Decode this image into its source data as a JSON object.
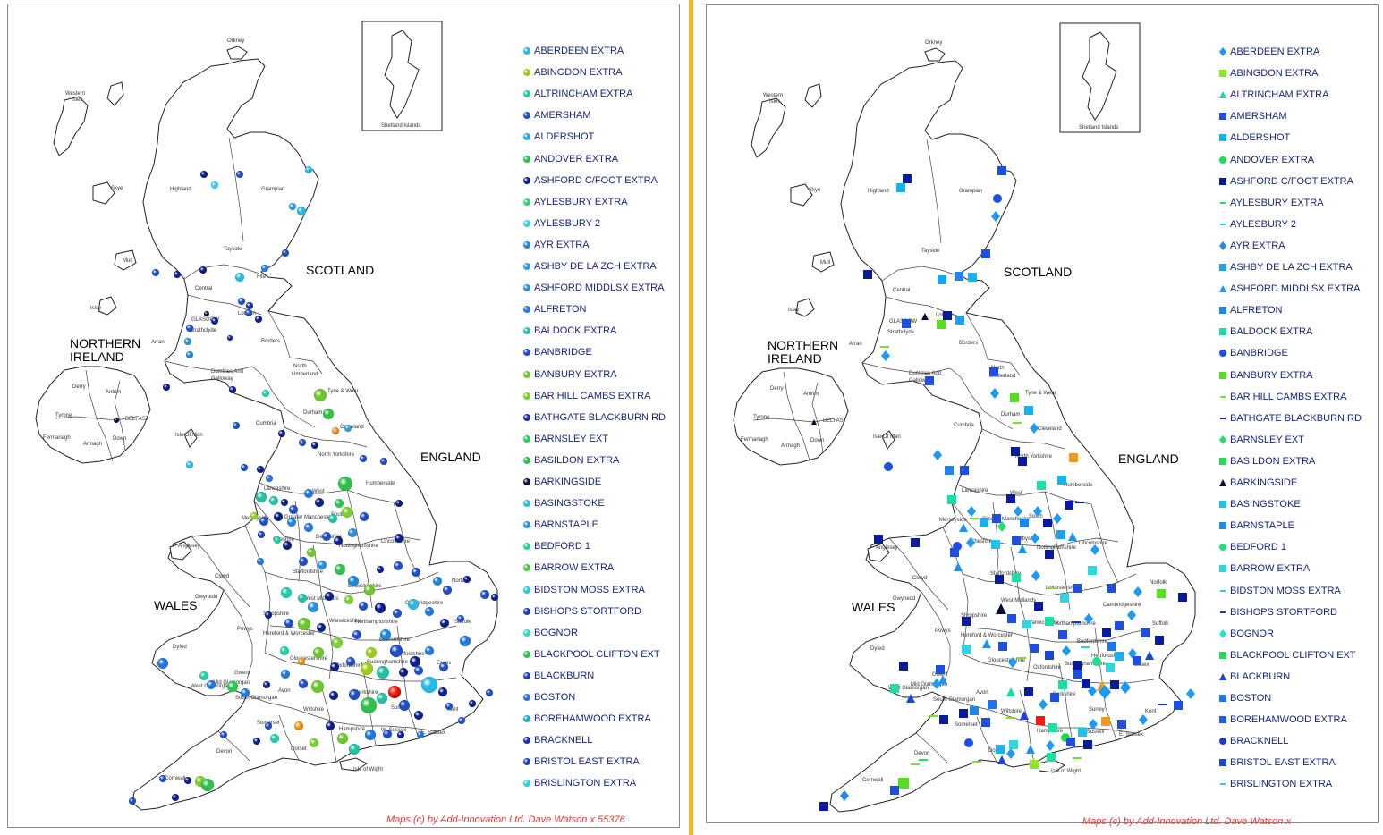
{
  "countries": {
    "scotland": "SCOTLAND",
    "england": "ENGLAND",
    "wales": "WALES",
    "northern_ireland_1": "NORTHERN",
    "northern_ireland_2": "IRELAND"
  },
  "regions": {
    "orkney": "Orkney",
    "western_isles_1": "Western",
    "western_isles_2": "Isles",
    "shetland": "Shetland Islands",
    "highland": "Highland",
    "grampian": "Grampian",
    "skye": "Skye",
    "tayside": "Tayside",
    "mull": "Mull",
    "central": "Central",
    "fife": "Fife",
    "islay": "Islay",
    "glasgow": "GLASGOW",
    "lothian": "Lothian",
    "strathclyde": "Strathclyde",
    "arran": "Arran",
    "borders": "Borders",
    "dumfries_1": "Dumfries And",
    "dumfries_2": "Galloway",
    "north_umberland_1": "North",
    "north_umberland_2": "Umberland",
    "tyne_wear": "Tyne & Wear",
    "durham": "Durham",
    "cleveland": "Cleveland",
    "cumbria": "Cumbria",
    "isle_of_man": "Isle Of Man",
    "north_yorkshire": "North Yorkshire",
    "humberside": "Humberside",
    "lancashire": "Lancashire",
    "west": "West",
    "south": "South",
    "greater_manchester": "Greater Manchester",
    "merseyside": "Merseyside",
    "cheshire": "Cheshire",
    "derbyshire": "Derbyshire",
    "nottinghamshire": "Nottinghamshire",
    "lincolnshire": "Lincolnshire",
    "anglesey": "Anglesey",
    "clwyd": "Clwyd",
    "gwynedd": "Gwynedd",
    "staffordshire": "Staffordshire",
    "shropshire": "Shropshire",
    "west_midlands": "West Midlands",
    "leicestershire": "Leicestershire",
    "norfolk": "Norfolk",
    "cambridgeshire": "Cambridgeshire",
    "northamptonshire": "Northamptonshire",
    "suffolk": "Suffolk",
    "warwickshire": "Warwickshire",
    "powys": "Powys",
    "hereford": "Hereford & Worcester",
    "bedfordshire": "Bedfordshire",
    "hertfordshire": "Hertfordshire",
    "essex": "Essex",
    "dyfed": "Dyfed",
    "gloucestershire": "Gloucestershire",
    "oxfordshire": "Oxfordshire",
    "buckinghamshire": "Buckinghamshire",
    "gwent": "Gwent",
    "west_glamorgan": "West Glamorgan",
    "mid_glamorgan": "Mid Glamorgan",
    "south_glamorgan": "South Glamorgan",
    "avon": "Avon",
    "wiltshire": "Wiltshire",
    "berkshire": "Berkshire",
    "surrey": "Surrey",
    "kent": "Kent",
    "hampshire": "Hampshire",
    "w_sussex": "W. Sussex",
    "e_sussex": "E. Sussex",
    "somerset": "Somerset",
    "devon": "Devon",
    "dorset": "Dorset",
    "cornwall": "Cornwall",
    "isle_of_wight": "Isle of Wight",
    "belfast": "BELFAST",
    "derry": "Derry",
    "antrim": "Antrim",
    "tyrone": "Tyrone",
    "fermanagh": "Fermanagh",
    "armagh": "Armagh",
    "down": "Down"
  },
  "legend_left": [
    {
      "label": "ABERDEEN EXTRA",
      "color": "#26b8e6",
      "shape": "ball"
    },
    {
      "label": "ABINGDON EXTRA",
      "color": "#9ccc1a",
      "shape": "ball"
    },
    {
      "label": "ALTRINCHAM EXTRA",
      "color": "#1fcfa5",
      "shape": "ball"
    },
    {
      "label": "AMERSHAM",
      "color": "#1e4fc8",
      "shape": "ball"
    },
    {
      "label": "ALDERSHOT",
      "color": "#27a9e8",
      "shape": "ball"
    },
    {
      "label": "ANDOVER EXTRA",
      "color": "#2fbf4a",
      "shape": "ball"
    },
    {
      "label": "ASHFORD C/FOOT EXTRA",
      "color": "#0d1f8c",
      "shape": "ball"
    },
    {
      "label": "AYLESBURY EXTRA",
      "color": "#2ad66f",
      "shape": "ball"
    },
    {
      "label": "AYLESBURY 2",
      "color": "#34d2e0",
      "shape": "ball"
    },
    {
      "label": "AYR EXTRA",
      "color": "#1f86d6",
      "shape": "ball"
    },
    {
      "label": "ASHBY DE LA ZCH EXTRA",
      "color": "#2f9be0",
      "shape": "ball"
    },
    {
      "label": "ASHFORD MIDDLSX EXTRA",
      "color": "#2b8ed9",
      "shape": "ball"
    },
    {
      "label": "ALFRETON",
      "color": "#2277dc",
      "shape": "ball"
    },
    {
      "label": "BALDOCK EXTRA",
      "color": "#22c2a0",
      "shape": "ball"
    },
    {
      "label": "BANBRIDGE",
      "color": "#1d48c9",
      "shape": "ball"
    },
    {
      "label": "BANBURY EXTRA",
      "color": "#6cc72a",
      "shape": "ball"
    },
    {
      "label": "BAR HILL CAMBS EXTRA",
      "color": "#7ad12c",
      "shape": "ball"
    },
    {
      "label": "BATHGATE BLACKBURN RD",
      "color": "#1a2fa8",
      "shape": "ball"
    },
    {
      "label": "BARNSLEY EXT",
      "color": "#2ac95a",
      "shape": "ball"
    },
    {
      "label": "BASILDON EXTRA",
      "color": "#29c04a",
      "shape": "ball"
    },
    {
      "label": "BARKINGSIDE",
      "color": "#0a0f3a",
      "shape": "ball"
    },
    {
      "label": "BASINGSTOKE",
      "color": "#27bfe0",
      "shape": "ball"
    },
    {
      "label": "BARNSTAPLE",
      "color": "#2496d8",
      "shape": "ball"
    },
    {
      "label": "BEDFORD 1",
      "color": "#2cd08a",
      "shape": "ball"
    },
    {
      "label": "BARROW EXTRA",
      "color": "#48c63a",
      "shape": "ball"
    },
    {
      "label": "BIDSTON MOSS EXTRA",
      "color": "#26c9d9",
      "shape": "ball"
    },
    {
      "label": "BISHOPS STORTFORD",
      "color": "#1b3cb8",
      "shape": "ball"
    },
    {
      "label": "BOGNOR",
      "color": "#2cdac5",
      "shape": "ball"
    },
    {
      "label": "BLACKPOOL CLIFTON EXT",
      "color": "#33c44d",
      "shape": "ball"
    },
    {
      "label": "BLACKBURN",
      "color": "#1d40c2",
      "shape": "ball"
    },
    {
      "label": "BOSTON",
      "color": "#2a6edb",
      "shape": "ball"
    },
    {
      "label": "BOREHAMWOOD EXTRA",
      "color": "#21a7c9",
      "shape": "ball"
    },
    {
      "label": "BRACKNELL",
      "color": "#1a32a7",
      "shape": "ball"
    },
    {
      "label": "BRISTOL EAST EXTRA",
      "color": "#1a3fb3",
      "shape": "ball"
    },
    {
      "label": "BRISLINGTON EXTRA",
      "color": "#2ed0d8",
      "shape": "ball"
    }
  ],
  "legend_right": [
    {
      "label": "ABERDEEN EXTRA",
      "color": "#1e9bf0",
      "shape": "diamond"
    },
    {
      "label": "ABINGDON EXTRA",
      "color": "#8be829",
      "shape": "square"
    },
    {
      "label": "ALTRINCHAM EXTRA",
      "color": "#18d9a0",
      "shape": "triangle"
    },
    {
      "label": "AMERSHAM",
      "color": "#1e4fe0",
      "shape": "square"
    },
    {
      "label": "ALDERSHOT",
      "color": "#19b2ef",
      "shape": "square"
    },
    {
      "label": "ANDOVER EXTRA",
      "color": "#18e04e",
      "shape": "circle"
    },
    {
      "label": "ASHFORD C/FOOT EXTRA",
      "color": "#0a1a9c",
      "shape": "square"
    },
    {
      "label": "AYLESBURY EXTRA",
      "color": "#25df5a",
      "shape": "dash"
    },
    {
      "label": "AYLESBURY 2",
      "color": "#22cfe3",
      "shape": "dash"
    },
    {
      "label": "AYR EXTRA",
      "color": "#1f8ce8",
      "shape": "diamond"
    },
    {
      "label": "ASHBY DE LA ZCH EXTRA",
      "color": "#1fa1ef",
      "shape": "square"
    },
    {
      "label": "ASHFORD MIDDLSX EXTRA",
      "color": "#1d95f0",
      "shape": "triangle"
    },
    {
      "label": "ALFRETON",
      "color": "#1f86ee",
      "shape": "square"
    },
    {
      "label": "BALDOCK EXTRA",
      "color": "#1ae0a6",
      "shape": "square"
    },
    {
      "label": "BANBRIDGE",
      "color": "#1b4fe3",
      "shape": "circle"
    },
    {
      "label": "BANBURY EXTRA",
      "color": "#55e01e",
      "shape": "square"
    },
    {
      "label": "BAR HILL CAMBS EXTRA",
      "color": "#7ee02c",
      "shape": "dash"
    },
    {
      "label": "BATHGATE BLACKBURN RD",
      "color": "#1422a8",
      "shape": "dash"
    },
    {
      "label": "BARNSLEY EXT",
      "color": "#20e06a",
      "shape": "diamond"
    },
    {
      "label": "BASILDON EXTRA",
      "color": "#1fe050",
      "shape": "square"
    },
    {
      "label": "BARKINGSIDE",
      "color": "#060b35",
      "shape": "triangle"
    },
    {
      "label": "BASINGSTOKE",
      "color": "#1cc3ef",
      "shape": "square"
    },
    {
      "label": "BARNSTAPLE",
      "color": "#1b8df0",
      "shape": "square"
    },
    {
      "label": "BEDFORD 1",
      "color": "#1fe08a",
      "shape": "circle"
    },
    {
      "label": "BARROW EXTRA",
      "color": "#2ed7e0",
      "shape": "square"
    },
    {
      "label": "BIDSTON MOSS EXTRA",
      "color": "#25d2e0",
      "shape": "dash"
    },
    {
      "label": "BISHOPS STORTFORD",
      "color": "#1932c4",
      "shape": "dash"
    },
    {
      "label": "BOGNOR",
      "color": "#20e6d0",
      "shape": "diamond"
    },
    {
      "label": "BLACKPOOL CLIFTON EXT",
      "color": "#24dd55",
      "shape": "square"
    },
    {
      "label": "BLACKBURN",
      "color": "#1a44db",
      "shape": "triangle"
    },
    {
      "label": "BOSTON",
      "color": "#1f74ea",
      "shape": "square"
    },
    {
      "label": "BOREHAMWOOD EXTRA",
      "color": "#1c5ee8",
      "shape": "square"
    },
    {
      "label": "BRACKNELL",
      "color": "#1b3cc8",
      "shape": "circle"
    },
    {
      "label": "BRISTOL EAST EXTRA",
      "color": "#1b46d8",
      "shape": "square"
    },
    {
      "label": "BRISLINGTON EXTRA",
      "color": "#2ad5e0",
      "shape": "dash"
    }
  ],
  "credit_left": "Maps (c) by Add-Innovation Ltd.  Dave Watson x 55376",
  "credit_right": "Maps (c) by Add-Innovation Ltd.  Dave Watson x"
}
